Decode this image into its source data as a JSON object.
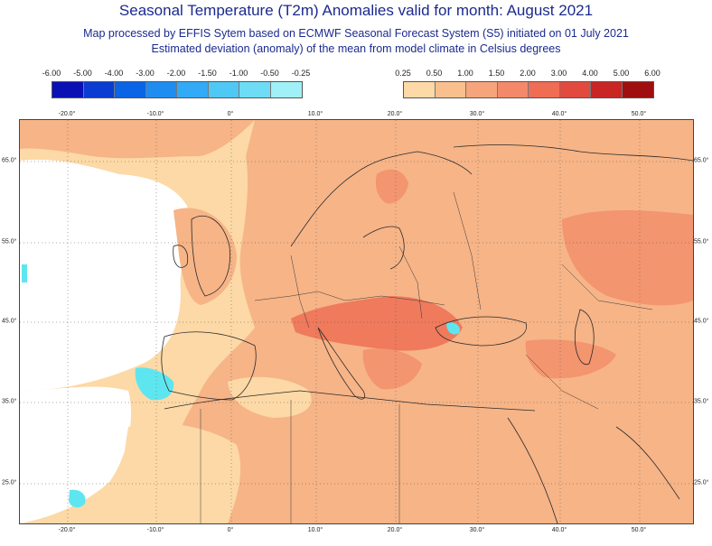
{
  "header": {
    "title": "Seasonal Temperature (T2m) Anomalies valid for month: August 2021",
    "line1": "Map processed by EFFIS Sytem based on ECMWF Seasonal Forecast System (S5) initiated on 01 July 2021",
    "line2": "Estimated deviation (anomaly) of the mean from model climate in Celsius degrees"
  },
  "legend_negative": {
    "labels": [
      "-6.00",
      "-5.00",
      "-4.00",
      "-3.00",
      "-2.00",
      "-1.50",
      "-1.00",
      "-0.50",
      "-0.25"
    ],
    "colors": [
      "#0a10b4",
      "#0a3cd2",
      "#0a64e6",
      "#1e8cf0",
      "#32aaf5",
      "#50c8f5",
      "#6edcf5",
      "#a0f0f8"
    ]
  },
  "legend_positive": {
    "labels": [
      "0.25",
      "0.50",
      "1.00",
      "1.50",
      "2.00",
      "3.00",
      "4.00",
      "5.00",
      "6.00"
    ],
    "colors": [
      "#fcd9a6",
      "#f9c08e",
      "#f6a47c",
      "#f3896a",
      "#ef6c55",
      "#e24a3f",
      "#c92525",
      "#a00f0f"
    ]
  },
  "map": {
    "lon_labels": [
      "-20.0°",
      "-10.0°",
      "0°",
      "10.0°",
      "20.0°",
      "30.0°",
      "40.0°",
      "50.0°"
    ],
    "lat_labels": [
      "65.0°",
      "55.0°",
      "45.0°",
      "35.0°",
      "25.0°"
    ],
    "colors": {
      "base": "#f6b487",
      "light": "#fcd9a6",
      "mid": "#f3956f",
      "strong": "#ef7a5c",
      "cold": "#5ee6f0",
      "white": "#ffffff",
      "border": "#2a2a2a"
    }
  }
}
